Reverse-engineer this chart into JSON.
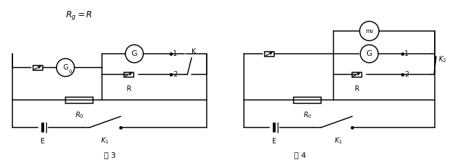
{
  "bg_color": "#ffffff",
  "title": "R_g=R",
  "fig3_label": "图 3",
  "fig4_label": "图 4"
}
